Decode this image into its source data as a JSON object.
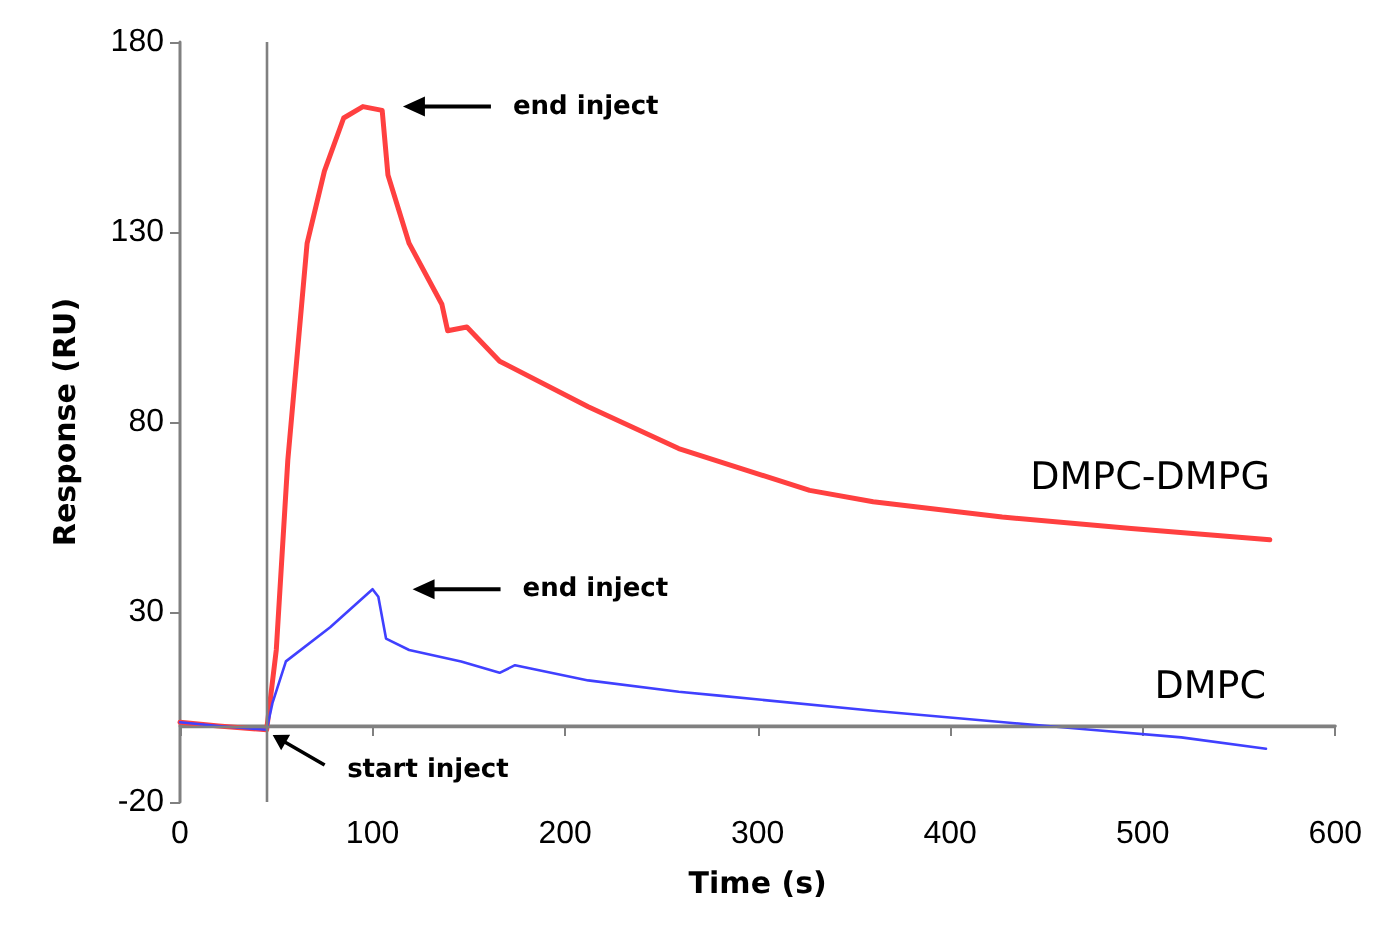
{
  "chart_data": {
    "type": "line",
    "xlabel": "Time (s)",
    "ylabel": "Response (RU)",
    "xlim": [
      0,
      600
    ],
    "xticks": [
      0,
      100,
      200,
      300,
      400,
      500,
      600
    ],
    "ylim": [
      -20,
      180
    ],
    "yticks": [
      -20,
      30,
      80,
      130,
      180
    ],
    "grid": false,
    "legend": false,
    "marker": "none",
    "line_style": "solid",
    "series": [
      {
        "name": "DMPC-DMPG",
        "color": "#ff4040",
        "x": [
          0,
          20,
          45,
          50,
          56,
          66,
          75,
          85,
          95,
          105,
          108,
          119,
          136,
          139,
          149,
          166,
          212,
          259,
          327,
          360,
          427,
          494,
          566
        ],
        "values": [
          1,
          0,
          -1,
          20,
          70,
          127,
          146,
          160,
          163,
          162,
          145,
          127,
          111,
          104,
          105,
          96,
          84,
          73,
          62,
          59,
          55,
          52,
          49
        ]
      },
      {
        "name": "DMPC",
        "color": "#4040ff",
        "x": [
          0,
          20,
          45,
          48,
          55,
          78,
          100,
          103,
          107,
          119,
          146,
          166,
          174,
          212,
          259,
          280,
          360,
          473,
          520,
          564
        ],
        "values": [
          1,
          0,
          -1,
          6,
          17,
          26,
          36,
          34,
          23,
          20,
          17,
          14,
          16,
          12,
          9,
          8,
          4,
          -1,
          -3,
          -6
        ]
      }
    ],
    "ref_lines": [
      {
        "axis": "x",
        "value": 45,
        "color": "#808080"
      },
      {
        "axis": "y",
        "value": 0,
        "color": "#808080"
      }
    ],
    "annotations": [
      "end inject",
      "end inject",
      "start inject"
    ]
  }
}
